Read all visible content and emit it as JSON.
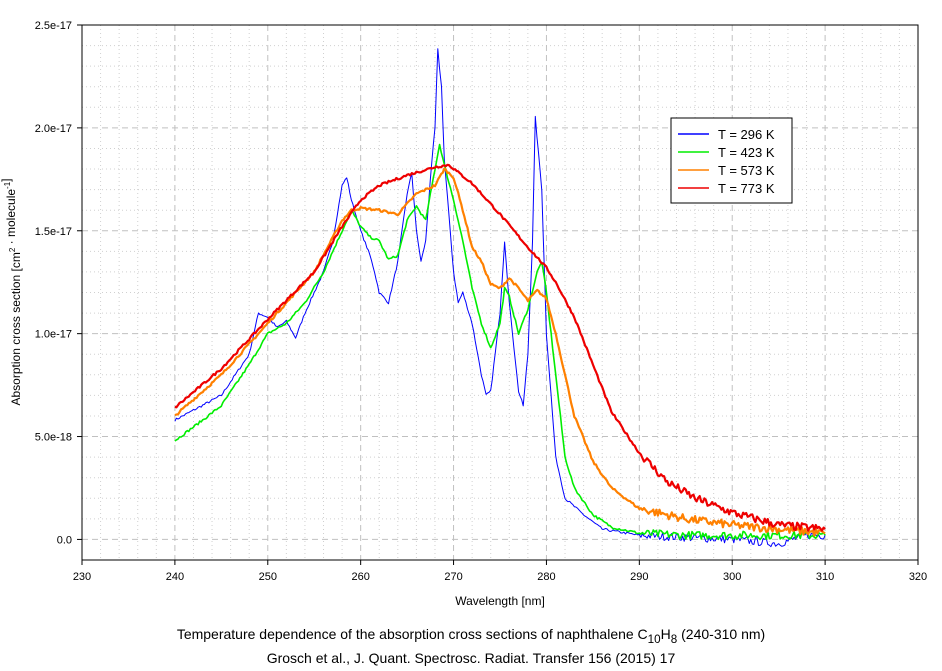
{
  "chart_data": {
    "type": "line",
    "title": "",
    "xlabel": "Wavelength [nm]",
    "ylabel_parts": {
      "main": "Absorption cross section [cm",
      "sup1": "2",
      "mid": " · molecule",
      "sup2": "-1",
      "end": "]"
    },
    "xlim": [
      230,
      320
    ],
    "ylim": [
      -1e-18,
      2.5e-17
    ],
    "y_unit_scale": 1e-17,
    "grid": true,
    "legend_placement": "top-right",
    "x_ticks": [
      "230",
      "240",
      "250",
      "260",
      "270",
      "280",
      "290",
      "300",
      "310",
      "320"
    ],
    "y_ticks": [
      {
        "value": 0,
        "label": "0.0"
      },
      {
        "value": 5e-18,
        "label": "5.0e-18"
      },
      {
        "value": 1e-17,
        "label": "1.0e-17"
      },
      {
        "value": 1.5e-17,
        "label": "1.5e-17"
      },
      {
        "value": 2e-17,
        "label": "2.0e-17"
      },
      {
        "value": 2.5e-17,
        "label": "2.5e-17"
      }
    ],
    "series": [
      {
        "name": "T = 296 K",
        "color": "#0000ff",
        "x": [
          240,
          245,
          248,
          249,
          250,
          251,
          252,
          253,
          254,
          255,
          256,
          257,
          258,
          258.5,
          259,
          260,
          261,
          261.5,
          262,
          263,
          264,
          265,
          265.5,
          266,
          266.5,
          267,
          267.5,
          268,
          268.3,
          268.7,
          269,
          270,
          270.5,
          271,
          272,
          273,
          273.5,
          274,
          275,
          275.5,
          276,
          277,
          277.5,
          278,
          278.5,
          278.8,
          279.5,
          280,
          281,
          282,
          284,
          286,
          290,
          295,
          300,
          305,
          308,
          310
        ],
        "y": [
          0.58,
          0.7,
          0.9,
          1.1,
          1.08,
          1.03,
          1.06,
          0.98,
          1.1,
          1.2,
          1.3,
          1.45,
          1.72,
          1.76,
          1.65,
          1.5,
          1.38,
          1.3,
          1.2,
          1.15,
          1.35,
          1.68,
          1.78,
          1.5,
          1.35,
          1.45,
          1.75,
          2.0,
          2.38,
          2.2,
          1.85,
          1.3,
          1.15,
          1.2,
          1.05,
          0.8,
          0.7,
          0.72,
          1.1,
          1.45,
          1.15,
          0.72,
          0.65,
          0.9,
          1.45,
          2.05,
          1.7,
          1.0,
          0.4,
          0.2,
          0.12,
          0.05,
          0.02,
          0.01,
          0.0,
          -0.02,
          0.02,
          0.02
        ]
      },
      {
        "name": "T = 423 K",
        "color": "#00ee00",
        "x": [
          240,
          243,
          245,
          248,
          250,
          252,
          254,
          256,
          258,
          259,
          260,
          261,
          262,
          263,
          264,
          265,
          266,
          267,
          268,
          268.5,
          269,
          270,
          271,
          272,
          273,
          274,
          275,
          275.5,
          276,
          277,
          278,
          279,
          279.5,
          280,
          281,
          282,
          283,
          285,
          287,
          290,
          295,
          300,
          310
        ],
        "y": [
          0.48,
          0.58,
          0.65,
          0.85,
          1.0,
          1.05,
          1.15,
          1.3,
          1.5,
          1.6,
          1.52,
          1.47,
          1.45,
          1.36,
          1.38,
          1.55,
          1.62,
          1.55,
          1.8,
          1.92,
          1.82,
          1.65,
          1.45,
          1.22,
          1.05,
          0.93,
          1.05,
          1.22,
          1.18,
          1.0,
          1.12,
          1.3,
          1.35,
          1.2,
          0.8,
          0.4,
          0.25,
          0.12,
          0.06,
          0.03,
          0.02,
          0.02,
          0.02
        ]
      },
      {
        "name": "T = 573 K",
        "color": "#ff8000",
        "x": [
          240,
          245,
          250,
          255,
          258,
          259,
          260,
          262,
          264,
          266,
          267,
          268,
          269,
          270,
          271,
          272,
          273,
          274,
          275,
          276,
          277,
          278,
          279,
          280,
          281,
          282,
          283,
          285,
          287,
          290,
          295,
          300,
          305,
          310
        ],
        "y": [
          0.6,
          0.8,
          1.05,
          1.3,
          1.55,
          1.6,
          1.61,
          1.6,
          1.58,
          1.68,
          1.7,
          1.72,
          1.8,
          1.76,
          1.6,
          1.42,
          1.35,
          1.24,
          1.22,
          1.27,
          1.22,
          1.16,
          1.21,
          1.17,
          1.0,
          0.8,
          0.6,
          0.38,
          0.25,
          0.15,
          0.1,
          0.07,
          0.05,
          0.03
        ]
      },
      {
        "name": "T = 773 K",
        "color": "#ee0000",
        "x": [
          240,
          245,
          250,
          255,
          258,
          260,
          262,
          265,
          268,
          269.5,
          272,
          275,
          278,
          280,
          281,
          283,
          285,
          287,
          290,
          293,
          296,
          300,
          305,
          310
        ],
        "y": [
          0.64,
          0.83,
          1.07,
          1.3,
          1.52,
          1.65,
          1.72,
          1.77,
          1.81,
          1.82,
          1.73,
          1.58,
          1.42,
          1.32,
          1.25,
          1.08,
          0.85,
          0.62,
          0.42,
          0.28,
          0.2,
          0.13,
          0.07,
          0.05
        ]
      }
    ]
  },
  "caption": {
    "line1_pre": "Temperature dependence of the absorption cross sections of naphthalene C",
    "sub1": "10",
    "h": "H",
    "sub2": "8",
    "line1_post": " (240-310 nm)",
    "line2": "Grosch et al., J. Quant. Spectrosc. Radiat. Transfer 156 (2015) 17"
  }
}
